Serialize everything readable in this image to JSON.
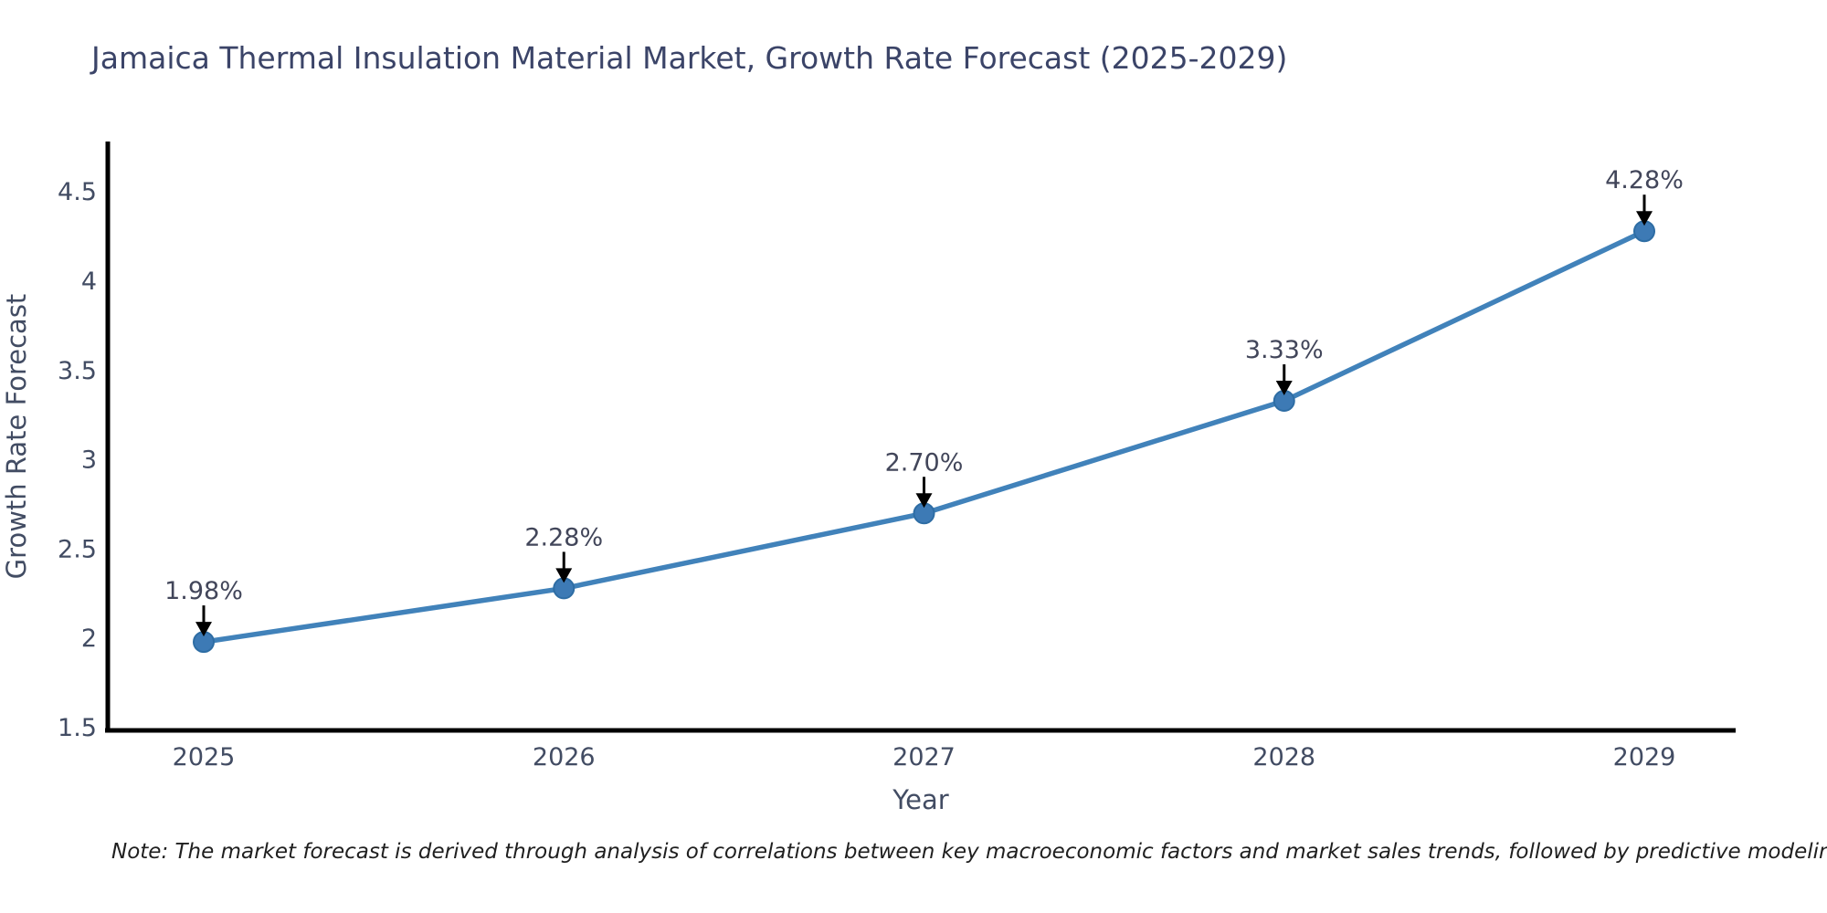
{
  "title": "Jamaica Thermal Insulation Material Market, Growth Rate Forecast (2025-2029)",
  "note": "Note: The market forecast is derived through analysis of correlations between key macroeconomic factors and market sales trends, followed by predictive modeling to project future sales",
  "chart_data": {
    "type": "line",
    "title": "Jamaica Thermal Insulation Material Market, Growth Rate Forecast (2025-2029)",
    "xlabel": "Year",
    "ylabel": "Growth Rate Forecast",
    "x": [
      2025,
      2026,
      2027,
      2028,
      2029
    ],
    "xtick_labels": [
      "2025",
      "2026",
      "2027",
      "2028",
      "2029"
    ],
    "values": [
      1.98,
      2.28,
      2.7,
      3.33,
      4.28
    ],
    "point_labels": [
      "1.98%",
      "2.28%",
      "2.70%",
      "3.33%",
      "4.28%"
    ],
    "yticks": [
      1.5,
      2,
      2.5,
      3,
      3.5,
      4,
      4.5
    ],
    "ytick_labels": [
      "1.5",
      "2",
      "2.5",
      "3",
      "3.5",
      "4",
      "4.5"
    ],
    "ylim": [
      1.5,
      4.8
    ],
    "grid": false,
    "legend": false,
    "line_style": "straight-segments",
    "colors": {
      "line": "#4182ba",
      "marker_fill": "#3d7ab5",
      "marker_edge": "#2e6da4",
      "axis": "#000000",
      "tick_text": "#424c63",
      "title_text": "#3b4468",
      "annotation_text": "#42465a",
      "annotation_arrow": "#000000",
      "note_text": "#1f1f1f"
    }
  }
}
